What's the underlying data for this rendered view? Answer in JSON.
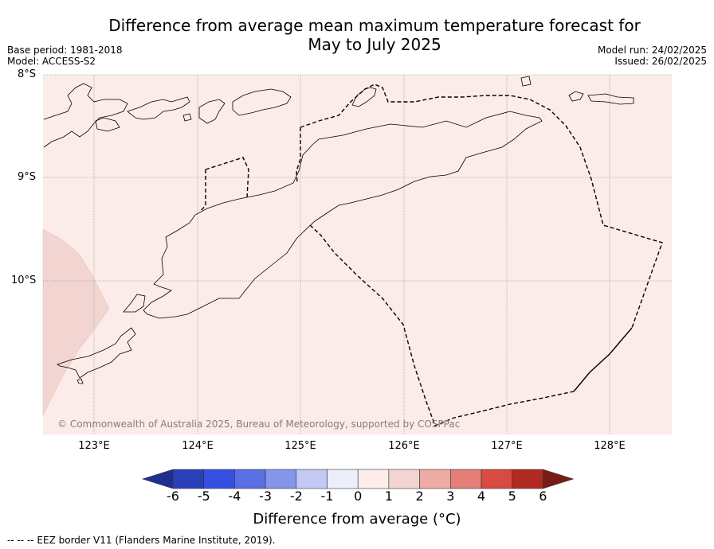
{
  "title_line1": "Difference from average mean maximum temperature forecast for",
  "title_line2": "May to July 2025",
  "base_period": "Base period: 1981-2018",
  "model": "Model: ACCESS-S2",
  "model_run": "Model run: 24/02/2025",
  "issued": "Issued: 26/02/2025",
  "lat_labels": [
    "8°S",
    "9°S",
    "10°S"
  ],
  "lon_labels": [
    "123°E",
    "124°E",
    "125°E",
    "126°E",
    "127°E",
    "128°E"
  ],
  "copyright": "© Commonwealth of Australia 2025, Bureau of Meteorology, supported by COSPPac",
  "colorbar": {
    "title": "Difference from average (°C)",
    "ticks": [
      "-6",
      "-5",
      "-4",
      "-3",
      "-2",
      "-1",
      "0",
      "1",
      "2",
      "3",
      "4",
      "5",
      "6"
    ],
    "colors": [
      "#1f2f8f",
      "#2a40b8",
      "#3550e0",
      "#5a6fe6",
      "#8595ea",
      "#c2c9f4",
      "#eceefb",
      "#fcecea",
      "#f3d4d0",
      "#eeaaa4",
      "#e47f78",
      "#d94a40",
      "#b02a22",
      "#7a1c16"
    ]
  },
  "map_colors": {
    "background": "#fbebe9",
    "warmer_patch": "#f2d5d1"
  },
  "footnote": "-- -- -- EEZ border V11 (Flanders Marine Institute, 2019)."
}
